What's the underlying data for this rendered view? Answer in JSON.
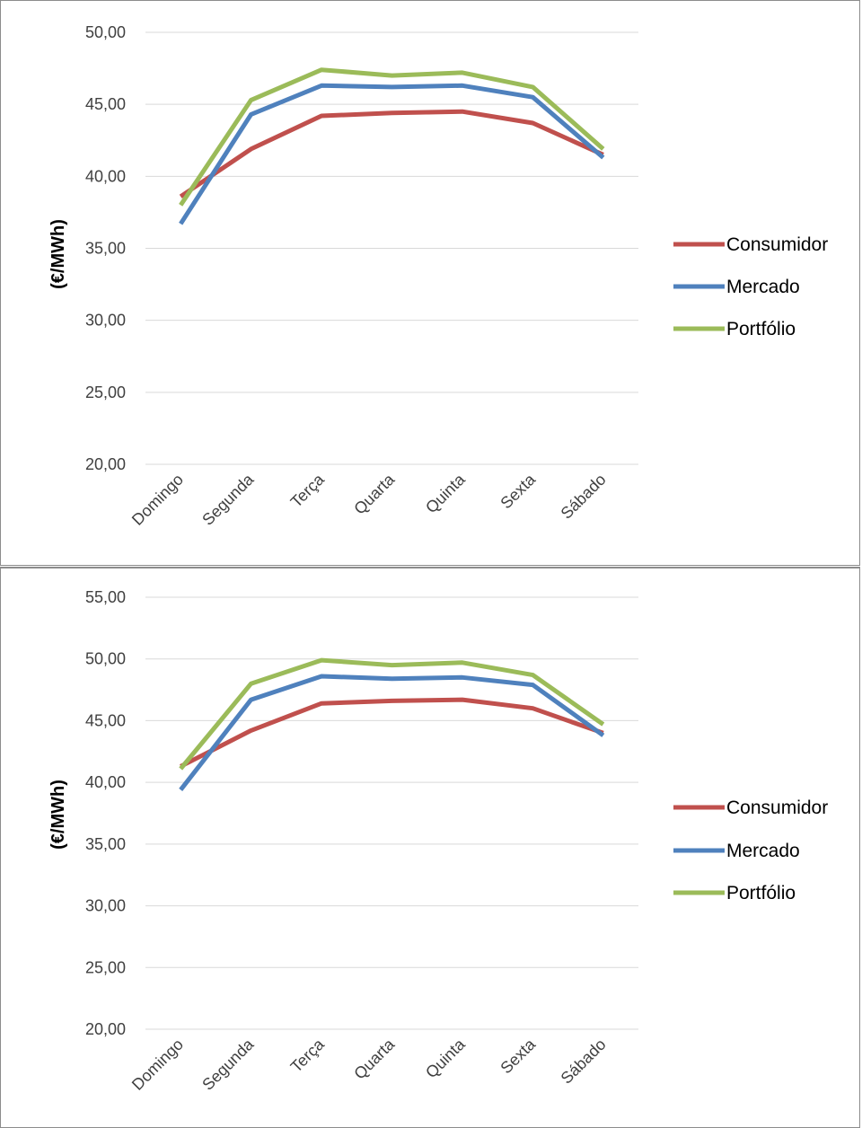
{
  "chart_data": [
    {
      "type": "line",
      "categories": [
        "Domingo",
        "Segunda",
        "Terça",
        "Quarta",
        "Quinta",
        "Sexta",
        "Sábado"
      ],
      "ylabel": "(€/MWh)",
      "ylim": [
        20,
        50
      ],
      "y_ticks": [
        "50,00",
        "45,00",
        "40,00",
        "35,00",
        "30,00",
        "25,00",
        "20,00"
      ],
      "grid": "horizontal",
      "legend_position": "right",
      "series": [
        {
          "name": "Consumidor",
          "color": "#c0504d",
          "values": [
            38.6,
            41.9,
            44.2,
            44.4,
            44.5,
            43.7,
            41.5
          ]
        },
        {
          "name": "Mercado",
          "color": "#4f81bd",
          "values": [
            36.7,
            44.3,
            46.3,
            46.2,
            46.3,
            45.5,
            41.3
          ]
        },
        {
          "name": "Portfólio",
          "color": "#9bbb59",
          "values": [
            38.0,
            45.3,
            47.4,
            47.0,
            47.2,
            46.2,
            41.9
          ]
        }
      ]
    },
    {
      "type": "line",
      "categories": [
        "Domingo",
        "Segunda",
        "Terça",
        "Quarta",
        "Quinta",
        "Sexta",
        "Sábado"
      ],
      "ylabel": "(€/MWh)",
      "ylim": [
        20,
        55
      ],
      "y_ticks": [
        "55,00",
        "50,00",
        "45,00",
        "40,00",
        "35,00",
        "30,00",
        "25,00",
        "20,00"
      ],
      "grid": "horizontal",
      "legend_position": "right",
      "series": [
        {
          "name": "Consumidor",
          "color": "#c0504d",
          "values": [
            41.3,
            44.2,
            46.4,
            46.6,
            46.7,
            46.0,
            44.0
          ]
        },
        {
          "name": "Mercado",
          "color": "#4f81bd",
          "values": [
            39.4,
            46.7,
            48.6,
            48.4,
            48.5,
            47.9,
            43.8
          ]
        },
        {
          "name": "Portfólio",
          "color": "#9bbb59",
          "values": [
            41.1,
            48.0,
            49.9,
            49.5,
            49.7,
            48.7,
            44.7
          ]
        }
      ]
    }
  ]
}
